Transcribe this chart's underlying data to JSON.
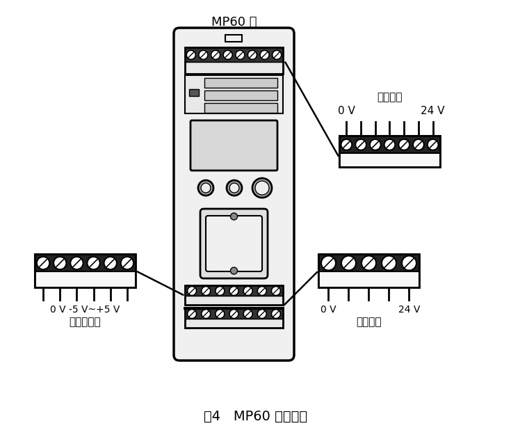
{
  "title": "图4   MP60 乙的接线",
  "bg_color": "#ffffff",
  "device_label": "MP60 乙",
  "top_right_label1": "输入电压",
  "top_right_label2a": "0 V",
  "top_right_label2b": "24 V",
  "bottom_left_label1": "0 V -5 V~+5 V",
  "bottom_left_label2": "模拟量输出",
  "bottom_right_label1a": "0 V",
  "bottom_right_label1b": "24 V",
  "bottom_right_label2": "输入电压",
  "line_color": "#000000",
  "device_fill": "#f0f0f0",
  "connector_fill": "#f0f0f0",
  "screw_fill": "#ffffff",
  "dark": "#111111"
}
